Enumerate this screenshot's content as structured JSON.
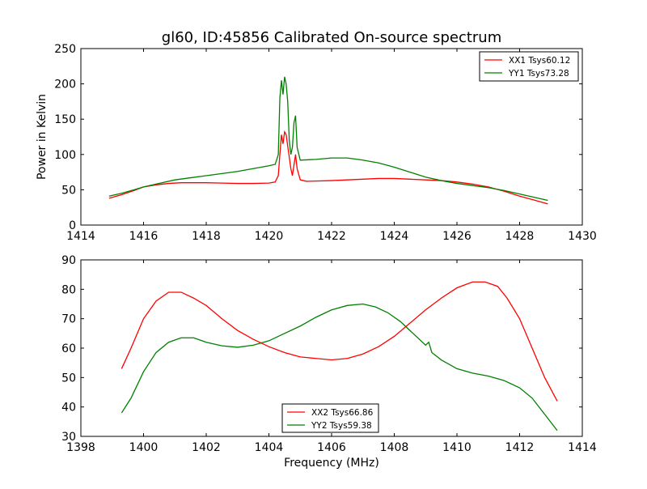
{
  "title": "gl60, ID:45856 Calibrated On-source spectrum",
  "colors": {
    "xx": "#ff0000",
    "yy": "#008000"
  },
  "chart_data": [
    {
      "type": "line",
      "ylabel": "Power in Kelvin",
      "xlabel": "",
      "xlim": [
        1414,
        1430
      ],
      "ylim": [
        0,
        250
      ],
      "xticks": [
        "1414",
        "1416",
        "1418",
        "1420",
        "1422",
        "1424",
        "1426",
        "1428",
        "1430"
      ],
      "yticks": [
        "0",
        "50",
        "100",
        "150",
        "200",
        "250"
      ],
      "legend_position": "top-right",
      "series": [
        {
          "name": "XX1 Tsys60.12",
          "color": "#ff0000",
          "points": [
            [
              1414.9,
              38
            ],
            [
              1415.3,
              43
            ],
            [
              1415.7,
              49
            ],
            [
              1416.0,
              54
            ],
            [
              1416.4,
              57
            ],
            [
              1416.8,
              59
            ],
            [
              1417.2,
              60
            ],
            [
              1417.6,
              60
            ],
            [
              1418.0,
              60
            ],
            [
              1418.5,
              59.5
            ],
            [
              1419.0,
              59
            ],
            [
              1419.5,
              59
            ],
            [
              1420.0,
              59.5
            ],
            [
              1420.2,
              61
            ],
            [
              1420.3,
              70
            ],
            [
              1420.35,
              100
            ],
            [
              1420.4,
              128
            ],
            [
              1420.45,
              115
            ],
            [
              1420.5,
              132
            ],
            [
              1420.55,
              128
            ],
            [
              1420.6,
              112
            ],
            [
              1420.7,
              80
            ],
            [
              1420.75,
              70
            ],
            [
              1420.8,
              85
            ],
            [
              1420.85,
              100
            ],
            [
              1420.9,
              80
            ],
            [
              1421.0,
              64
            ],
            [
              1421.2,
              62
            ],
            [
              1421.6,
              62.5
            ],
            [
              1422.0,
              63
            ],
            [
              1422.5,
              64
            ],
            [
              1423.0,
              65
            ],
            [
              1423.5,
              66
            ],
            [
              1424.0,
              66
            ],
            [
              1424.5,
              65
            ],
            [
              1425.0,
              64
            ],
            [
              1425.5,
              63
            ],
            [
              1426.0,
              61
            ],
            [
              1426.5,
              58
            ],
            [
              1427.0,
              54
            ],
            [
              1427.5,
              48
            ],
            [
              1428.0,
              41
            ],
            [
              1428.5,
              35
            ],
            [
              1428.9,
              30
            ]
          ]
        },
        {
          "name": "YY1 Tsys73.28",
          "color": "#008000",
          "points": [
            [
              1414.9,
              41
            ],
            [
              1415.3,
              45
            ],
            [
              1415.7,
              50
            ],
            [
              1416.0,
              54
            ],
            [
              1416.5,
              59
            ],
            [
              1417.0,
              64
            ],
            [
              1417.5,
              67
            ],
            [
              1418.0,
              70
            ],
            [
              1418.5,
              73
            ],
            [
              1419.0,
              76
            ],
            [
              1419.5,
              80
            ],
            [
              1420.0,
              84
            ],
            [
              1420.2,
              86
            ],
            [
              1420.3,
              100
            ],
            [
              1420.35,
              180
            ],
            [
              1420.4,
              205
            ],
            [
              1420.45,
              185
            ],
            [
              1420.5,
              210
            ],
            [
              1420.55,
              200
            ],
            [
              1420.6,
              175
            ],
            [
              1420.65,
              120
            ],
            [
              1420.7,
              100
            ],
            [
              1420.75,
              110
            ],
            [
              1420.8,
              145
            ],
            [
              1420.85,
              155
            ],
            [
              1420.9,
              110
            ],
            [
              1421.0,
              92
            ],
            [
              1421.5,
              93
            ],
            [
              1422.0,
              95
            ],
            [
              1422.5,
              95
            ],
            [
              1423.0,
              92
            ],
            [
              1423.5,
              88
            ],
            [
              1424.0,
              82
            ],
            [
              1424.5,
              75
            ],
            [
              1425.0,
              68
            ],
            [
              1425.5,
              63
            ],
            [
              1426.0,
              59
            ],
            [
              1426.5,
              56
            ],
            [
              1427.0,
              53
            ],
            [
              1427.5,
              49
            ],
            [
              1428.0,
              44
            ],
            [
              1428.5,
              39
            ],
            [
              1428.9,
              35
            ]
          ]
        }
      ]
    },
    {
      "type": "line",
      "ylabel": "",
      "xlabel": "Frequency (MHz)",
      "xlim": [
        1398,
        1414
      ],
      "ylim": [
        30,
        90
      ],
      "xticks": [
        "1398",
        "1400",
        "1402",
        "1404",
        "1406",
        "1408",
        "1410",
        "1412",
        "1414"
      ],
      "yticks": [
        "30",
        "40",
        "50",
        "60",
        "70",
        "80",
        "90"
      ],
      "legend_position": "bottom-center",
      "series": [
        {
          "name": "XX2 Tsys66.86",
          "color": "#ff0000",
          "points": [
            [
              1399.3,
              53
            ],
            [
              1399.6,
              60
            ],
            [
              1400.0,
              70
            ],
            [
              1400.4,
              76
            ],
            [
              1400.8,
              79
            ],
            [
              1401.2,
              79
            ],
            [
              1401.6,
              77
            ],
            [
              1402.0,
              74.5
            ],
            [
              1402.5,
              70
            ],
            [
              1403.0,
              66
            ],
            [
              1403.5,
              63
            ],
            [
              1404.0,
              60.5
            ],
            [
              1404.5,
              58.5
            ],
            [
              1405.0,
              57
            ],
            [
              1405.5,
              56.5
            ],
            [
              1406.0,
              56
            ],
            [
              1406.5,
              56.5
            ],
            [
              1407.0,
              58
            ],
            [
              1407.5,
              60.5
            ],
            [
              1408.0,
              64
            ],
            [
              1408.5,
              68.5
            ],
            [
              1409.0,
              73
            ],
            [
              1409.5,
              77
            ],
            [
              1410.0,
              80.5
            ],
            [
              1410.5,
              82.5
            ],
            [
              1410.9,
              82.5
            ],
            [
              1411.3,
              81
            ],
            [
              1411.6,
              77
            ],
            [
              1412.0,
              70
            ],
            [
              1412.4,
              60
            ],
            [
              1412.8,
              50
            ],
            [
              1413.2,
              42
            ]
          ]
        },
        {
          "name": "YY2 Tsys59.38",
          "color": "#008000",
          "points": [
            [
              1399.3,
              38
            ],
            [
              1399.6,
              43
            ],
            [
              1400.0,
              52
            ],
            [
              1400.4,
              58.5
            ],
            [
              1400.8,
              62
            ],
            [
              1401.2,
              63.5
            ],
            [
              1401.6,
              63.5
            ],
            [
              1402.0,
              62
            ],
            [
              1402.5,
              60.8
            ],
            [
              1403.0,
              60.3
            ],
            [
              1403.5,
              61
            ],
            [
              1404.0,
              62.5
            ],
            [
              1404.5,
              65
            ],
            [
              1405.0,
              67.5
            ],
            [
              1405.5,
              70.5
            ],
            [
              1406.0,
              73
            ],
            [
              1406.5,
              74.5
            ],
            [
              1407.0,
              75
            ],
            [
              1407.4,
              74
            ],
            [
              1407.8,
              72
            ],
            [
              1408.2,
              69
            ],
            [
              1408.6,
              65
            ],
            [
              1409.0,
              61
            ],
            [
              1409.1,
              62
            ],
            [
              1409.2,
              58.5
            ],
            [
              1409.5,
              56
            ],
            [
              1410.0,
              53
            ],
            [
              1410.5,
              51.5
            ],
            [
              1411.0,
              50.5
            ],
            [
              1411.5,
              49
            ],
            [
              1412.0,
              46.5
            ],
            [
              1412.4,
              43
            ],
            [
              1412.8,
              37.5
            ],
            [
              1413.2,
              32
            ]
          ]
        }
      ]
    }
  ]
}
